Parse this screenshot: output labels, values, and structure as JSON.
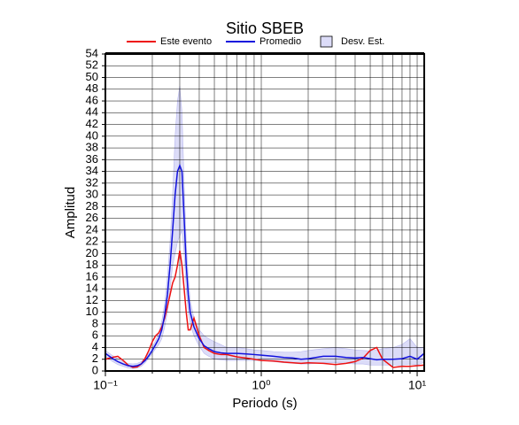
{
  "chart_data": {
    "type": "line",
    "title": "Sitio SBEB",
    "xlabel": "Periodo (s)",
    "ylabel": "Amplitud",
    "xscale": "log",
    "grid": true,
    "legend": "top",
    "xlim": [
      0.1,
      11.1
    ],
    "ylim": [
      0,
      54
    ],
    "xticks": [
      {
        "value": 0.1,
        "label": "10⁻¹"
      },
      {
        "value": 1,
        "label": "10⁰"
      },
      {
        "value": 10,
        "label": "10¹"
      }
    ],
    "x_minor_ticks": [
      0.2,
      0.3,
      0.4,
      0.5,
      0.6,
      0.7,
      0.8,
      0.9,
      2,
      3,
      4,
      5,
      6,
      7,
      8,
      9
    ],
    "yticks": [
      0,
      2,
      4,
      6,
      8,
      10,
      12,
      14,
      16,
      18,
      20,
      22,
      24,
      26,
      28,
      30,
      32,
      34,
      36,
      38,
      40,
      42,
      44,
      46,
      48,
      50,
      52,
      54
    ],
    "x": [
      0.1,
      0.11,
      0.12,
      0.13,
      0.14,
      0.15,
      0.16,
      0.17,
      0.18,
      0.19,
      0.2,
      0.21,
      0.22,
      0.23,
      0.24,
      0.25,
      0.26,
      0.27,
      0.28,
      0.29,
      0.3,
      0.31,
      0.32,
      0.33,
      0.34,
      0.35,
      0.37,
      0.4,
      0.43,
      0.46,
      0.5,
      0.55,
      0.6,
      0.7,
      0.8,
      0.9,
      1.0,
      1.2,
      1.4,
      1.6,
      1.8,
      2.0,
      2.5,
      3.0,
      3.5,
      4.0,
      4.5,
      5.0,
      5.5,
      6.0,
      7,
      8,
      9,
      10,
      11.1
    ],
    "series": [
      {
        "name": "Este evento",
        "color": "#ee1111",
        "values": [
          2,
          2.3,
          2.5,
          1.8,
          1,
          0.6,
          0.7,
          1.2,
          2.2,
          3.5,
          5,
          6,
          6.5,
          7.5,
          9,
          11,
          13,
          15,
          16,
          18,
          20.5,
          18,
          14,
          10,
          7,
          7,
          9,
          6,
          4,
          3.5,
          3,
          2.8,
          2.8,
          2.4,
          2.2,
          2,
          1.8,
          1.7,
          1.5,
          1.4,
          1.3,
          1.4,
          1.3,
          1.1,
          1.3,
          1.6,
          2.2,
          3.5,
          4,
          2,
          0.6,
          0.8,
          0.8,
          0.9,
          1
        ]
      },
      {
        "name": "Promedio",
        "color": "#1111dd",
        "values": [
          3,
          2.2,
          1.6,
          1.2,
          0.9,
          0.8,
          0.9,
          1.2,
          1.8,
          2.6,
          3.5,
          4.5,
          5.5,
          7,
          9.5,
          13,
          18,
          24,
          30,
          34,
          35,
          34,
          26,
          18,
          13,
          10,
          7.5,
          5.5,
          4.3,
          3.8,
          3.3,
          3.1,
          3,
          3,
          2.9,
          2.8,
          2.7,
          2.5,
          2.3,
          2.2,
          2,
          2.1,
          2.5,
          2.5,
          2.3,
          2.2,
          2.3,
          2.1,
          1.9,
          2,
          2,
          2.1,
          2.5,
          2,
          3
        ]
      },
      {
        "name": "Desv. Est.",
        "color": "#dcdcf8",
        "upper": [
          3.5,
          2.7,
          2.1,
          1.6,
          1.3,
          1.2,
          1.3,
          1.6,
          2.2,
          3,
          4,
          5.2,
          6.5,
          8.5,
          11.5,
          16,
          22,
          30,
          40,
          46,
          48.5,
          44,
          32,
          22,
          16,
          12,
          9,
          7,
          6,
          5.5,
          5,
          4.5,
          4,
          4,
          3.8,
          3.6,
          3.5,
          3.3,
          3.2,
          3.2,
          3.3,
          3.5,
          3.8,
          4,
          3.8,
          3.6,
          3.5,
          3.4,
          3.6,
          3.8,
          4,
          4.5,
          5.5,
          4,
          4
        ],
        "lower": [
          2.5,
          1.7,
          1.1,
          0.8,
          0.5,
          0.4,
          0.5,
          0.8,
          1.4,
          2.2,
          3,
          3.8,
          4.5,
          5.5,
          7.5,
          10,
          14,
          18,
          20,
          22,
          23,
          24,
          20,
          14,
          10,
          8,
          6,
          4.2,
          3,
          2.5,
          2,
          1.9,
          1.8,
          1.8,
          1.8,
          1.8,
          1.8,
          1.6,
          1.4,
          1.3,
          1.2,
          1.2,
          1.4,
          1.4,
          1.3,
          1.2,
          1.2,
          1,
          1,
          1,
          1,
          1,
          1.2,
          1,
          1.5
        ]
      }
    ]
  }
}
